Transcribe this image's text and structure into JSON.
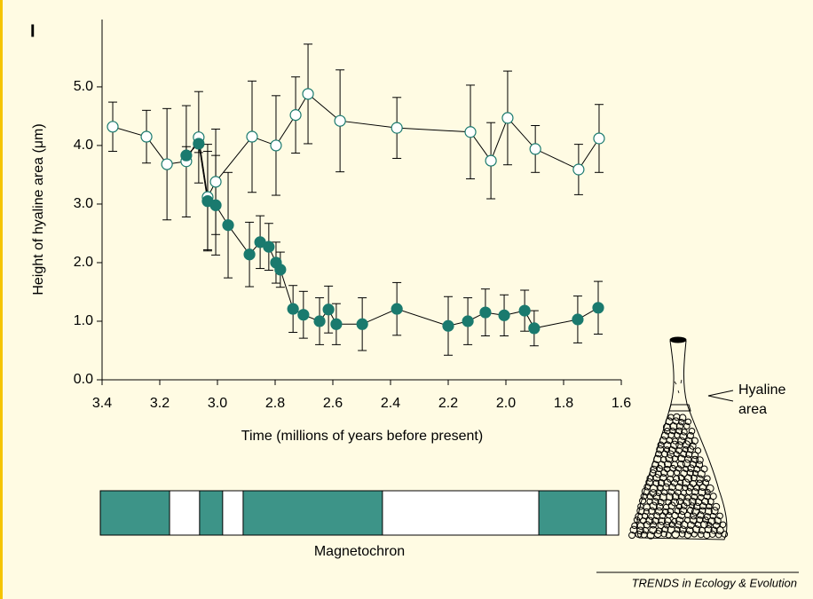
{
  "panel_label": "I",
  "chart_data": {
    "type": "line",
    "xlabel": "Time (millions of years before present)",
    "ylabel": "Height of hyaline area (μm)",
    "xlim": [
      3.4,
      1.6
    ],
    "ylim": [
      0,
      6.15
    ],
    "xticks": [
      3.4,
      3.2,
      {
        "value": 3,
        "label": "3.0"
      },
      2.8,
      2.6,
      2.4,
      2.2,
      {
        "value": 2,
        "label": "2.0"
      },
      1.8,
      1.6
    ],
    "yticks": [
      {
        "value": 0,
        "label": "0.0"
      },
      {
        "value": 1,
        "label": "1.0"
      },
      {
        "value": 2,
        "label": "2.0"
      },
      {
        "value": 3,
        "label": "3.0"
      },
      {
        "value": 4,
        "label": "4.0"
      },
      {
        "value": 5,
        "label": "5.0"
      }
    ],
    "series": [
      {
        "marker": "open",
        "color": "#1a7a6e",
        "x": [
          3.363,
          3.246,
          3.175,
          3.108,
          3.065,
          3.034,
          3.006,
          2.88,
          2.797,
          2.729,
          2.686,
          2.575,
          2.378,
          2.123,
          2.052,
          1.994,
          1.898,
          1.748,
          1.677
        ],
        "values": [
          4.32,
          4.15,
          3.68,
          3.73,
          4.14,
          3.12,
          3.38,
          4.15,
          4.0,
          4.52,
          4.88,
          4.42,
          4.3,
          4.23,
          3.74,
          4.47,
          3.94,
          3.59,
          4.12
        ],
        "errors": [
          0.42,
          0.45,
          0.95,
          0.95,
          0.78,
          0.9,
          0.9,
          0.95,
          0.85,
          0.65,
          0.85,
          0.87,
          0.52,
          0.8,
          0.65,
          0.8,
          0.4,
          0.43,
          0.58
        ]
      },
      {
        "marker": "filled",
        "color": "#1a7a6e",
        "x": [
          3.108,
          3.065,
          3.034,
          3.006,
          2.963,
          2.889,
          2.852,
          2.822,
          2.797,
          2.782,
          2.738,
          2.702,
          2.646,
          2.615,
          2.588,
          2.498,
          2.378,
          2.2,
          2.132,
          2.071,
          2.006,
          1.935,
          1.902,
          1.751,
          1.68
        ],
        "values": [
          3.83,
          4.03,
          3.05,
          2.98,
          2.64,
          2.14,
          2.35,
          2.27,
          2.0,
          1.88,
          1.21,
          1.11,
          1.0,
          1.2,
          0.95,
          0.95,
          1.21,
          0.92,
          1.0,
          1.15,
          1.1,
          1.18,
          0.88,
          1.03,
          1.23
        ],
        "errors": [
          0.15,
          0.15,
          0.85,
          0.85,
          0.9,
          0.55,
          0.45,
          0.4,
          0.35,
          0.3,
          0.4,
          0.4,
          0.4,
          0.4,
          0.35,
          0.45,
          0.45,
          0.5,
          0.4,
          0.4,
          0.35,
          0.35,
          0.3,
          0.4,
          0.45
        ]
      }
    ],
    "magnetochron": {
      "label": "Magnetochron",
      "color": "#3d9488",
      "range": [
        3.406,
        1.609
      ],
      "normal": [
        [
          3.406,
          3.166
        ],
        [
          3.062,
          2.982
        ],
        [
          2.911,
          2.428
        ],
        [
          1.886,
          1.652
        ]
      ]
    }
  },
  "annotation": {
    "lines": [
      "Hyaline",
      "area"
    ]
  },
  "footer": "TRENDS in Ecology & Evolution"
}
